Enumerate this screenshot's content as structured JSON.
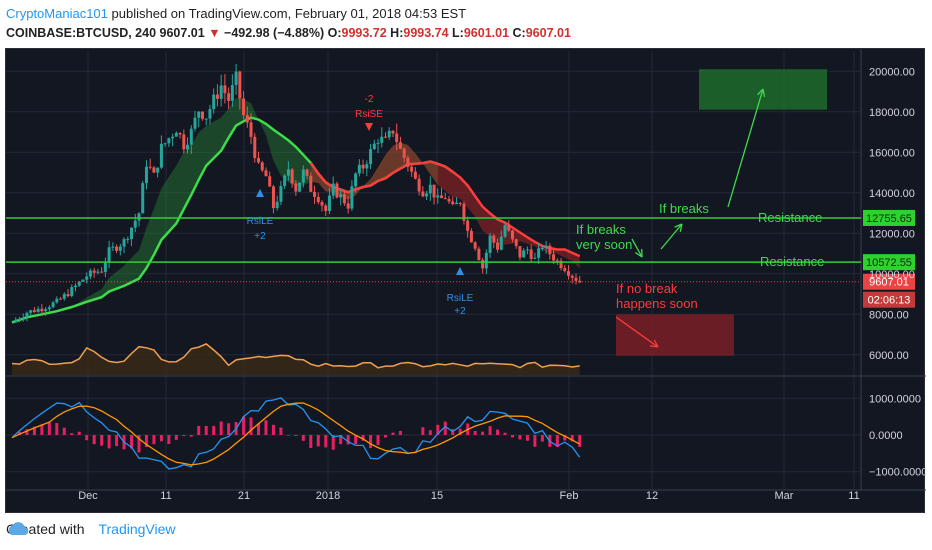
{
  "header": {
    "author": "CryptoManiac101",
    "published_text": "published on TradingView.com, February 01, 2018 04:53 EST",
    "symbol": "COINBASE:BTCUSD, 240",
    "last": "9607.01",
    "change": "−492.98 (−4.88%)",
    "o_label": "O:",
    "o_value": "9993.72",
    "h_label": "H:",
    "h_value": "9993.74",
    "l_label": "L:",
    "l_value": "9601.01",
    "c_label": "C:",
    "c_value": "9607.01"
  },
  "footer": {
    "created_with": "Created with",
    "brand": "TradingView"
  },
  "colors": {
    "bg": "#131722",
    "grid": "#2a2e39",
    "support": "#2fd12f",
    "price_tag": "#e84444",
    "green_zone": "#1f6b2a",
    "red_zone": "#7a1f24"
  },
  "chart_data": {
    "type": "candlestick",
    "symbol": "COINBASE:BTCUSD",
    "interval": "240",
    "x_ticks": [
      "Dec",
      "11",
      "21",
      "2018",
      "15",
      "Feb",
      "12",
      "Mar",
      "11"
    ],
    "y_ticks": [
      "20000.00",
      "18000.00",
      "16000.00",
      "14000.00",
      "12000.00",
      "10000.00",
      "8000.00",
      "6000.00"
    ],
    "ylim": [
      5000,
      21000
    ],
    "indicator_y_ticks": [
      "1000.0000",
      "0.0000",
      "−1000.0000"
    ],
    "horizontal_lines": [
      {
        "label": "Resistance",
        "value": 12755.65,
        "tag": "12755.65"
      },
      {
        "label": "Resistance",
        "value": 10572.55,
        "tag": "10572.55"
      }
    ],
    "price_tag": "9607.01",
    "countdown_tag": "02:06:13",
    "annotations": [
      {
        "text": "-2",
        "color": "red"
      },
      {
        "text": "RsiSE",
        "color": "red"
      },
      {
        "text": "RsiLE",
        "color": "blue"
      },
      {
        "text": "+2",
        "color": "blue"
      },
      {
        "text": "RsiLE",
        "color": "blue"
      },
      {
        "text": "+2",
        "color": "blue"
      },
      {
        "text": "If breaks",
        "color": "green"
      },
      {
        "text": "If breaks",
        "color": "green"
      },
      {
        "text": "very soon",
        "color": "green"
      },
      {
        "text": "Resistance",
        "color": "green"
      },
      {
        "text": "Resistance",
        "color": "green"
      },
      {
        "text": "If no break",
        "color": "red"
      },
      {
        "text": "happens soon",
        "color": "red"
      }
    ],
    "price_path": [
      [
        0,
        7600
      ],
      [
        2,
        8100
      ],
      [
        4,
        8300
      ],
      [
        6,
        8600
      ],
      [
        8,
        9200
      ],
      [
        10,
        9900
      ],
      [
        12,
        10200
      ],
      [
        13,
        11100
      ],
      [
        15,
        11600
      ],
      [
        17,
        13000
      ],
      [
        18,
        15500
      ],
      [
        19,
        14800
      ],
      [
        20,
        16200
      ],
      [
        22,
        17200
      ],
      [
        23,
        16400
      ],
      [
        24,
        17000
      ],
      [
        25,
        18100
      ],
      [
        26,
        17800
      ],
      [
        28,
        19300
      ],
      [
        29,
        18600
      ],
      [
        30,
        19600
      ],
      [
        31,
        17800
      ],
      [
        32,
        16800
      ],
      [
        33,
        15200
      ],
      [
        34,
        14800
      ],
      [
        35,
        13300
      ],
      [
        36,
        14100
      ],
      [
        37,
        15200
      ],
      [
        38,
        14200
      ],
      [
        39,
        15000
      ],
      [
        40,
        14200
      ],
      [
        41,
        13800
      ],
      [
        42,
        13100
      ],
      [
        43,
        14200
      ],
      [
        44,
        13800
      ],
      [
        45,
        13400
      ],
      [
        46,
        14900
      ],
      [
        47,
        15300
      ],
      [
        48,
        16000
      ],
      [
        49,
        16700
      ],
      [
        50,
        16500
      ],
      [
        51,
        17100
      ],
      [
        52,
        16100
      ],
      [
        53,
        15400
      ],
      [
        54,
        14600
      ],
      [
        55,
        14100
      ],
      [
        56,
        14300
      ],
      [
        57,
        13600
      ],
      [
        58,
        13800
      ],
      [
        59,
        13200
      ],
      [
        60,
        13600
      ],
      [
        61,
        12100
      ],
      [
        62,
        11400
      ],
      [
        63,
        10300
      ],
      [
        64,
        11800
      ],
      [
        65,
        11300
      ],
      [
        66,
        12400
      ],
      [
        67,
        11600
      ],
      [
        68,
        10900
      ],
      [
        69,
        11200
      ],
      [
        70,
        10700
      ],
      [
        71,
        11400
      ],
      [
        72,
        11000
      ],
      [
        73,
        10600
      ],
      [
        74,
        10300
      ],
      [
        75,
        9900
      ],
      [
        76,
        9607
      ]
    ],
    "zones": [
      {
        "name": "upside-target",
        "color": "green",
        "ymin": 18100,
        "ymax": 20100
      },
      {
        "name": "downside-target",
        "color": "red",
        "ymin": 5950,
        "ymax": 8000
      }
    ]
  }
}
